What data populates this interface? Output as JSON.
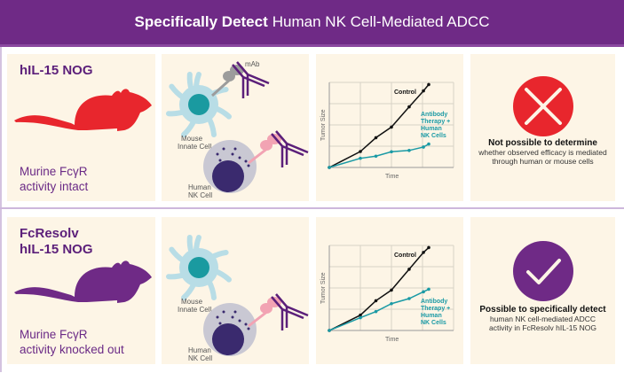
{
  "header": {
    "title_bold": "Specifically Detect",
    "title_rest": "Human NK Cell-Mediated ADCC"
  },
  "rows": [
    {
      "model_title_1": "hIL-15 NOG",
      "model_title_2": "",
      "model_note_1": "Murine FcγR",
      "model_note_2": "activity intact",
      "mouse_color": "#e8262d",
      "labels": {
        "mab": "mAb",
        "innate_1": "Mouse",
        "innate_2": "Innate Cell",
        "nk_1": "Human",
        "nk_2": "NK Cell"
      },
      "result_icon": "x-circle-icon",
      "result_color": "#e8262d",
      "conclusion_bold": "Not possible to determine",
      "conclusion_1": "whether observed efficacy is mediated",
      "conclusion_2": "through human or mouse cells"
    },
    {
      "model_title_1": "FcResolv",
      "model_title_2": "hIL-15 NOG",
      "model_note_1": "Murine FcγR",
      "model_note_2": "activity knocked out",
      "mouse_color": "#6f2a86",
      "labels": {
        "innate_1": "Mouse",
        "innate_2": "Innate Cell",
        "nk_1": "Human",
        "nk_2": "NK Cell"
      },
      "result_icon": "check-circle-icon",
      "result_color": "#6f2a86",
      "conclusion_bold": "Possible to specifically detect",
      "conclusion_1": "human NK cell-mediated ADCC",
      "conclusion_2": "activity in FcResolv hIL-15 NOG"
    }
  ],
  "chart_data": [
    {
      "type": "line",
      "xlabel": "Time",
      "ylabel": "Tumor Size",
      "xlim": [
        0,
        4
      ],
      "ylim": [
        0,
        4
      ],
      "grid": true,
      "series": [
        {
          "name": "Control",
          "color": "#111111",
          "x": [
            0,
            1,
            1.5,
            2,
            2.57,
            3.03,
            3.2
          ],
          "y": [
            0,
            0.75,
            1.4,
            1.9,
            2.85,
            3.6,
            3.9
          ]
        },
        {
          "name": "Antibody Therapy + Human NK Cells",
          "color": "#1a9aa5",
          "x": [
            0,
            1,
            1.5,
            2,
            2.57,
            3.03,
            3.2
          ],
          "y": [
            0,
            0.43,
            0.53,
            0.74,
            0.8,
            0.96,
            1.1
          ]
        }
      ],
      "legend_lines": [
        "Control",
        "Antibody",
        "Therapy +",
        "Human",
        "NK Cells"
      ]
    },
    {
      "type": "line",
      "xlabel": "Time",
      "ylabel": "Tumor Size",
      "xlim": [
        0,
        4
      ],
      "ylim": [
        0,
        4
      ],
      "grid": true,
      "series": [
        {
          "name": "Control",
          "color": "#111111",
          "x": [
            0,
            1,
            1.5,
            2,
            2.57,
            3.03,
            3.2
          ],
          "y": [
            0,
            0.72,
            1.4,
            1.9,
            2.88,
            3.67,
            3.9
          ]
        },
        {
          "name": "Antibody Therapy + Human NK Cells",
          "color": "#1a9aa5",
          "x": [
            0,
            1,
            1.5,
            2,
            2.57,
            3.03,
            3.2
          ],
          "y": [
            0,
            0.6,
            0.89,
            1.26,
            1.5,
            1.82,
            1.94
          ]
        }
      ],
      "legend_lines": [
        "Control",
        "Antibody",
        "Therapy +",
        "Human",
        "NK Cells"
      ]
    }
  ]
}
